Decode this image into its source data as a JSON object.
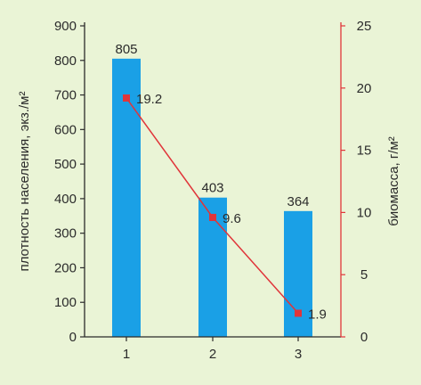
{
  "chart_data": {
    "type": "bar",
    "categories": [
      "1",
      "2",
      "3"
    ],
    "series": [
      {
        "type": "bar",
        "axis": "left",
        "values": [
          805,
          403,
          364
        ],
        "labels": [
          "805",
          "403",
          "364"
        ],
        "color": "#1aa0e6"
      },
      {
        "type": "line",
        "axis": "right",
        "values": [
          19.2,
          9.6,
          1.9
        ],
        "labels": [
          "19.2",
          "9.6",
          "1.9"
        ],
        "color": "#e0353a"
      }
    ],
    "ylabel_left": "плотность населения, экз./м²",
    "ylabel_right": "биомасса, г/м²",
    "ylim_left": [
      0,
      900
    ],
    "ylim_right": [
      0,
      25
    ],
    "yticks_left": [
      "0",
      "100",
      "200",
      "300",
      "400",
      "500",
      "600",
      "700",
      "800",
      "900"
    ],
    "yticks_right": [
      "0",
      "5",
      "10",
      "15",
      "20",
      "25"
    ],
    "grid": false,
    "background": "#eaf4d6",
    "axis_right_color": "#e0353a"
  }
}
